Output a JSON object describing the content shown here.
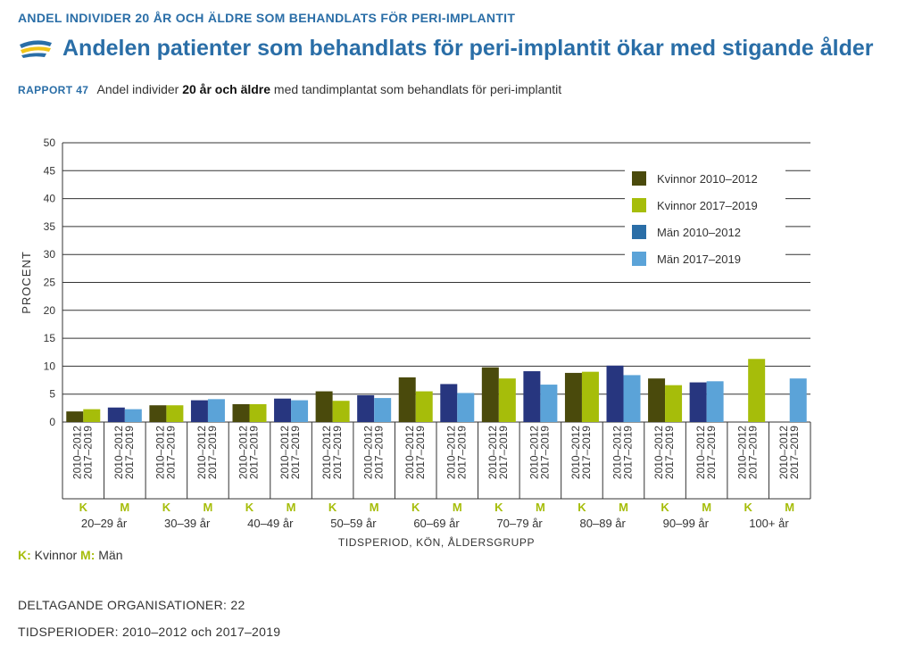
{
  "header": {
    "kicker": "ANDEL INDIVIDER 20 ÅR OCH ÄLDRE SOM BEHANDLATS FÖR PERI-IMPLANTIT",
    "title": "Andelen patienter som behandlats för peri-implantit ökar med stigande ålder",
    "report_label": "RAPPORT 47",
    "subtitle_pre": "Andel individer ",
    "subtitle_bold": "20 år och äldre",
    "subtitle_post": " med tandimplantat som behandlats för peri-implantit"
  },
  "legend_note": {
    "k_key": "K:",
    "k_text": " Kvinnor ",
    "m_key": "M:",
    "m_text": " Män"
  },
  "footer": {
    "organisations": "DELTAGANDE ORGANISATIONER: 22",
    "periods": "TIDSPERIODER: 2010–2012 och 2017–2019"
  },
  "chart_data": {
    "type": "bar",
    "ylabel": "PROCENT",
    "xlabel": "TIDSPERIOD, KÖN, ÅLDERSGRUPP",
    "ylim": [
      0,
      50
    ],
    "yticks": [
      0,
      5,
      10,
      15,
      20,
      25,
      30,
      35,
      40,
      45,
      50
    ],
    "grid": true,
    "legend_position": "top-right",
    "period_labels": [
      "2010–2012",
      "2017–2019"
    ],
    "sex_labels": [
      "K",
      "M"
    ],
    "categories": [
      "20–29 år",
      "30–39 år",
      "40–49 år",
      "50–59 år",
      "60–69 år",
      "70–79 år",
      "80–89 år",
      "90–99 år",
      "100+ år"
    ],
    "series": [
      {
        "name": "Kvinnor 2010–2012",
        "color": "#4a4a0c",
        "values": [
          1.9,
          3.0,
          3.2,
          5.5,
          8.0,
          9.8,
          8.8,
          7.8,
          null
        ]
      },
      {
        "name": "Kvinnor 2017–2019",
        "color": "#a6bd0a",
        "values": [
          2.3,
          3.0,
          3.2,
          3.8,
          5.5,
          7.8,
          9.0,
          6.6,
          11.3
        ]
      },
      {
        "name": "Män 2010–2012",
        "color": "#27367f",
        "values": [
          2.6,
          3.9,
          4.2,
          4.8,
          6.8,
          9.1,
          10.1,
          7.1,
          null
        ]
      },
      {
        "name": "Män 2017–2019",
        "color": "#5ba3d8",
        "values": [
          2.3,
          4.1,
          3.9,
          4.3,
          5.2,
          6.7,
          8.4,
          7.3,
          7.8
        ]
      }
    ],
    "legend_patch_colors": [
      "#4a4a0c",
      "#a6bd0a",
      "#2a6ea7",
      "#5ba3d8"
    ]
  }
}
